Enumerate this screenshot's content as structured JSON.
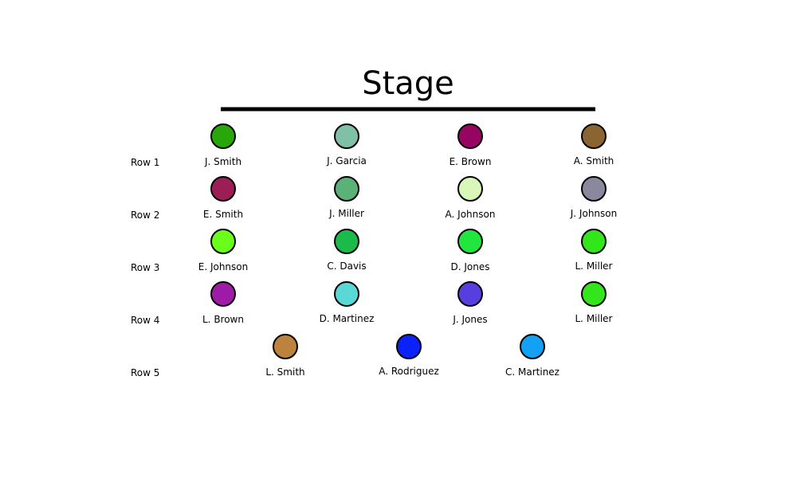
{
  "title": "Stage",
  "rows": [
    {
      "label": "Row 1",
      "seats": [
        {
          "name": "J. Smith",
          "color": "#29a60a"
        },
        {
          "name": "J. Garcia",
          "color": "#80c0a6"
        },
        {
          "name": "E. Brown",
          "color": "#970563"
        },
        {
          "name": "A. Smith",
          "color": "#8b6531"
        }
      ]
    },
    {
      "label": "Row 2",
      "seats": [
        {
          "name": "E. Smith",
          "color": "#9b1f55"
        },
        {
          "name": "J. Miller",
          "color": "#5ab278"
        },
        {
          "name": "A. Johnson",
          "color": "#d7f8b8"
        },
        {
          "name": "J. Johnson",
          "color": "#8a889c"
        }
      ]
    },
    {
      "label": "Row 3",
      "seats": [
        {
          "name": "E. Johnson",
          "color": "#6afe1b"
        },
        {
          "name": "C. Davis",
          "color": "#1abb4b"
        },
        {
          "name": "D. Jones",
          "color": "#20e63d"
        },
        {
          "name": "L. Miller",
          "color": "#33e61b"
        }
      ]
    },
    {
      "label": "Row 4",
      "seats": [
        {
          "name": "L. Brown",
          "color": "#9e1ba5"
        },
        {
          "name": "D. Martinez",
          "color": "#5ad8d6"
        },
        {
          "name": "J. Jones",
          "color": "#573ede"
        },
        {
          "name": "L. Miller",
          "color": "#33e61b"
        }
      ]
    },
    {
      "label": "Row 5",
      "seats": [
        {
          "name": "L. Smith",
          "color": "#bd823e"
        },
        {
          "name": "A. Rodriguez",
          "color": "#0b22fe"
        },
        {
          "name": "C. Martinez",
          "color": "#12a1f4"
        }
      ]
    }
  ]
}
